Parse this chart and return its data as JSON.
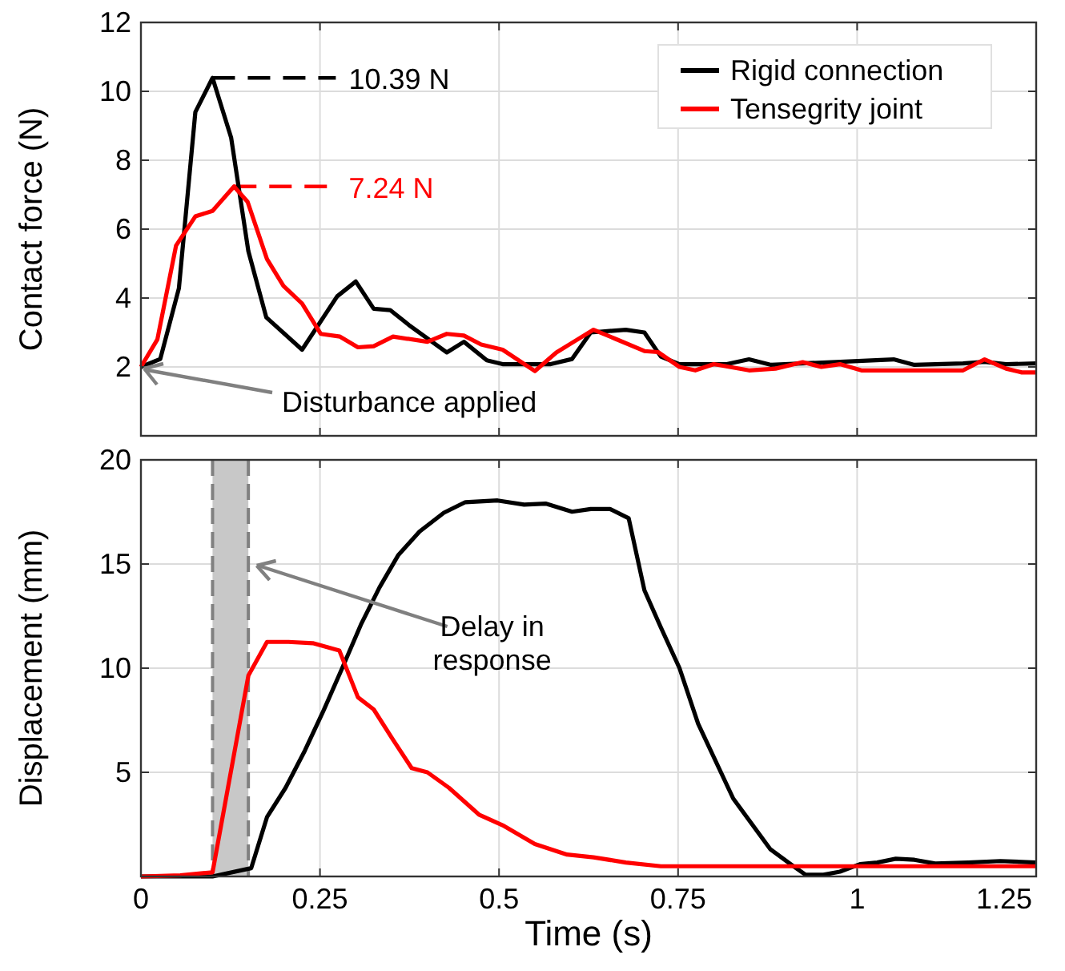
{
  "chart_data": [
    {
      "type": "line",
      "ylabel": "Contact force (N)",
      "xlim": [
        0,
        1.25
      ],
      "xticks": [
        0,
        0.25,
        0.5,
        0.75,
        1,
        1.25
      ],
      "ylim": [
        0,
        12
      ],
      "yticks": [
        2,
        4,
        6,
        8,
        10,
        12
      ],
      "grid": true,
      "legend": "top right",
      "tick_labels": "y",
      "line_style": "solid",
      "marker": "none",
      "series": [
        {
          "name": "Rigid connection",
          "color": "#000000",
          "x": [
            0,
            0.027,
            0.053,
            0.076,
            0.1,
            0.126,
            0.15,
            0.175,
            0.225,
            0.274,
            0.3,
            0.325,
            0.348,
            0.374,
            0.427,
            0.451,
            0.483,
            0.505,
            0.572,
            0.602,
            0.628,
            0.677,
            0.703,
            0.726,
            0.752,
            0.818,
            0.849,
            0.88,
            1.051,
            1.08,
            1.148,
            1.178,
            1.208,
            1.25
          ],
          "values": [
            2,
            2.23,
            4.28,
            9.4,
            10.39,
            8.65,
            5.36,
            3.44,
            2.5,
            4.05,
            4.48,
            3.69,
            3.65,
            3.22,
            2.42,
            2.73,
            2.19,
            2.08,
            2.08,
            2.23,
            3,
            3.08,
            3,
            2.3,
            2.08,
            2.08,
            2.22,
            2.06,
            2.22,
            2.06,
            2.1,
            2.15,
            2.08,
            2.1
          ]
        },
        {
          "name": "Tensegrity joint",
          "color": "#ff0000",
          "x": [
            0,
            0.023,
            0.049,
            0.076,
            0.1,
            0.13,
            0.149,
            0.176,
            0.199,
            0.225,
            0.251,
            0.278,
            0.303,
            0.325,
            0.352,
            0.4,
            0.427,
            0.451,
            0.475,
            0.505,
            0.55,
            0.58,
            0.602,
            0.632,
            0.662,
            0.703,
            0.722,
            0.752,
            0.774,
            0.8,
            0.849,
            0.886,
            0.924,
            0.95,
            0.976,
            1.006,
            1.148,
            1.178,
            1.208,
            1.23,
            1.25
          ],
          "values": [
            2,
            2.8,
            5.52,
            6.37,
            6.53,
            7.24,
            6.79,
            5.13,
            4.35,
            3.84,
            2.96,
            2.88,
            2.57,
            2.6,
            2.88,
            2.73,
            2.96,
            2.91,
            2.65,
            2.5,
            1.88,
            2.42,
            2.7,
            3.08,
            2.82,
            2.46,
            2.43,
            2,
            1.9,
            2.08,
            1.9,
            1.95,
            2.14,
            2,
            2.08,
            1.9,
            1.9,
            2.22,
            1.95,
            1.84,
            1.84
          ]
        }
      ],
      "ref_lines": [
        {
          "axis": "y",
          "value": 10.39,
          "label": "10.39 N",
          "color": "#000000",
          "line_style": "dashed"
        },
        {
          "axis": "y",
          "value": 7.24,
          "label": "7.24 N",
          "color": "#ff0000",
          "line_style": "dashed"
        }
      ],
      "annotations": [
        {
          "text": "Disturbance applied",
          "x": 0,
          "y": 2
        }
      ]
    },
    {
      "type": "line",
      "xlabel": "Time (s)",
      "ylabel": "Displacement (mm)",
      "xlim": [
        0,
        1.25
      ],
      "xticks": [
        0,
        0.25,
        0.5,
        0.75,
        1,
        1.25
      ],
      "ylim": [
        0,
        20
      ],
      "yticks": [
        5,
        10,
        15,
        20
      ],
      "grid": true,
      "line_style": "solid",
      "marker": "none",
      "series": [
        {
          "color": "#000000",
          "x": [
            0,
            0.1,
            0.154,
            0.176,
            0.202,
            0.229,
            0.255,
            0.281,
            0.307,
            0.333,
            0.359,
            0.389,
            0.423,
            0.453,
            0.498,
            0.535,
            0.565,
            0.602,
            0.628,
            0.655,
            0.681,
            0.703,
            0.726,
            0.752,
            0.778,
            0.827,
            0.879,
            0.909,
            0.928,
            0.953,
            0.976,
            1.004,
            1.028,
            1.054,
            1.08,
            1.109,
            1.155,
            1.2,
            1.25
          ],
          "values": [
            0,
            0,
            0.4,
            2.85,
            4.26,
            6.05,
            7.97,
            10,
            12.08,
            13.87,
            15.41,
            16.56,
            17.46,
            17.97,
            18.05,
            17.85,
            17.9,
            17.51,
            17.64,
            17.64,
            17.2,
            13.74,
            11.95,
            10,
            7.33,
            3.74,
            1.3,
            0.54,
            0.08,
            0.08,
            0.23,
            0.59,
            0.67,
            0.85,
            0.8,
            0.62,
            0.67,
            0.74,
            0.67
          ]
        },
        {
          "color": "#ff0000",
          "x": [
            0,
            0.055,
            0.1,
            0.15,
            0.176,
            0.206,
            0.24,
            0.277,
            0.303,
            0.325,
            0.352,
            0.378,
            0.4,
            0.43,
            0.472,
            0.505,
            0.55,
            0.595,
            0.632,
            0.677,
            0.726,
            1.25
          ],
          "values": [
            0,
            0.05,
            0.2,
            9.64,
            11.26,
            11.26,
            11.2,
            10.85,
            8.6,
            8.02,
            6.56,
            5.2,
            5,
            4.26,
            2.97,
            2.46,
            1.56,
            1.05,
            0.92,
            0.67,
            0.49,
            0.49
          ]
        }
      ],
      "bands": [
        {
          "axis": "x",
          "from": 0.1,
          "to": 0.15,
          "color": "#c8c8c8"
        }
      ],
      "ref_lines": [
        {
          "axis": "x",
          "value": 0.1,
          "color": "#808080",
          "line_style": "dashed"
        },
        {
          "axis": "x",
          "value": 0.15,
          "color": "#808080",
          "line_style": "dashed"
        }
      ],
      "annotations": [
        {
          "text": "Delay in response",
          "x": 0.155,
          "y": 15
        }
      ]
    }
  ]
}
